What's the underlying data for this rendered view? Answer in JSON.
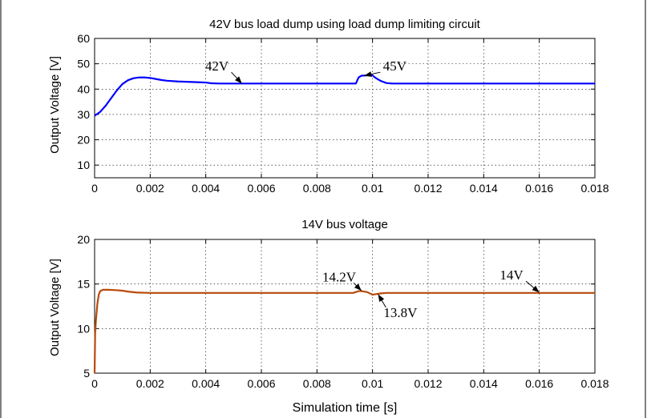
{
  "figure": {
    "xlabel": "Simulation time [s]"
  },
  "chart_data": [
    {
      "type": "line",
      "title": "42V bus load dump using load dump limiting circuit",
      "ylabel": "Output Voltage [V]",
      "xlim": [
        0,
        0.018
      ],
      "ylim": [
        5,
        60
      ],
      "xticks": [
        0,
        0.002,
        0.004,
        0.006,
        0.008,
        0.01,
        0.012,
        0.014,
        0.016,
        0.018
      ],
      "xtick_labels": [
        "0",
        "0.002",
        "0.004",
        "0.006",
        "0.008",
        "0.01",
        "0.012",
        "0.014",
        "0.016",
        "0.018"
      ],
      "yticks": [
        10,
        20,
        30,
        40,
        50,
        60
      ],
      "ytick_labels": [
        "10",
        "20",
        "30",
        "40",
        "50",
        "60"
      ],
      "grid": true,
      "series": [
        {
          "color": "#0000ff",
          "x": [
            0,
            0.0002,
            0.0004,
            0.0006,
            0.0008,
            0.001,
            0.0012,
            0.0014,
            0.0016,
            0.0018,
            0.002,
            0.0022,
            0.0024,
            0.0026,
            0.003,
            0.0035,
            0.004,
            0.0042,
            0.0045,
            0.005,
            0.006,
            0.007,
            0.008,
            0.009,
            0.0094,
            0.0095,
            0.0096,
            0.0098,
            0.0099,
            0.01,
            0.0101,
            0.0103,
            0.0105,
            0.0107,
            0.011,
            0.012,
            0.014,
            0.016,
            0.018
          ],
          "y": [
            29.5,
            31,
            33.5,
            36.5,
            39.5,
            42,
            43.5,
            44.3,
            44.6,
            44.6,
            44.4,
            44,
            43.6,
            43.3,
            43,
            42.8,
            42.6,
            42.3,
            42.2,
            42.2,
            42.2,
            42.2,
            42.2,
            42.2,
            42.2,
            44.6,
            45.3,
            45.4,
            45.5,
            45.4,
            44.5,
            43.2,
            42.4,
            42.2,
            42.2,
            42.2,
            42.2,
            42.2,
            42.2
          ]
        }
      ],
      "annotations": [
        {
          "text": "42V",
          "x": 0.0044,
          "y": 47.3,
          "arrow_to": [
            0.0053,
            42.2
          ]
        },
        {
          "text": "45V",
          "x": 0.0108,
          "y": 47.3,
          "arrow_to": [
            0.0097,
            45.3
          ]
        }
      ]
    },
    {
      "type": "line",
      "title": "14V bus voltage",
      "ylabel": "Output Voltage [V]",
      "xlabel": "Simulation time [s]",
      "xlim": [
        0,
        0.018
      ],
      "ylim": [
        5,
        20
      ],
      "xticks": [
        0,
        0.002,
        0.004,
        0.006,
        0.008,
        0.01,
        0.012,
        0.014,
        0.016,
        0.018
      ],
      "xtick_labels": [
        "0",
        "0.002",
        "0.004",
        "0.006",
        "0.008",
        "0.01",
        "0.012",
        "0.014",
        "0.016",
        "0.018"
      ],
      "yticks": [
        5,
        10,
        15,
        20
      ],
      "ytick_labels": [
        "5",
        "10",
        "15",
        "20"
      ],
      "grid": true,
      "series": [
        {
          "color": "#b84a0a",
          "x": [
            0,
            2e-05,
            5e-05,
            0.0001,
            0.00015,
            0.0002,
            0.0003,
            0.0005,
            0.0008,
            0.001,
            0.0012,
            0.0015,
            0.002,
            0.004,
            0.006,
            0.008,
            0.0093,
            0.0095,
            0.0096,
            0.0098,
            0.01,
            0.0101,
            0.0103,
            0.0105,
            0.011,
            0.012,
            0.014,
            0.016,
            0.018
          ],
          "y": [
            5,
            9.5,
            11,
            12.8,
            13.8,
            14.2,
            14.35,
            14.35,
            14.3,
            14.25,
            14.15,
            14.05,
            14,
            14,
            14,
            14,
            14,
            14.2,
            14.2,
            14.1,
            13.8,
            13.85,
            13.95,
            14,
            14,
            14,
            14,
            14,
            14
          ]
        }
      ],
      "annotations": [
        {
          "text": "14.2V",
          "x": 0.0088,
          "y": 15.3,
          "arrow_to": [
            0.0096,
            14.25
          ]
        },
        {
          "text": "13.8V",
          "x": 0.011,
          "y": 11.3,
          "arrow_to": [
            0.0102,
            13.85
          ]
        },
        {
          "text": "14V",
          "x": 0.015,
          "y": 15.5,
          "arrow_to": [
            0.016,
            14.05
          ]
        }
      ]
    }
  ]
}
